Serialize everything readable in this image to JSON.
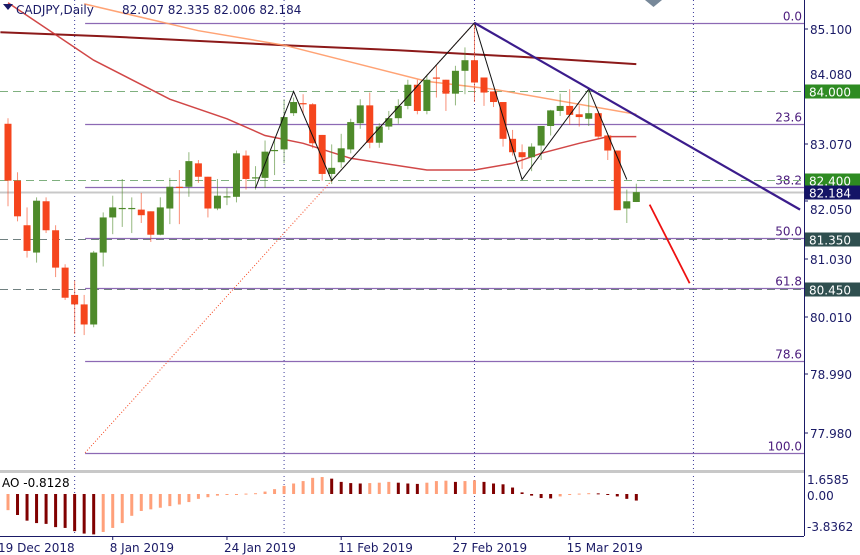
{
  "header": {
    "symbol_label": "CADJPY,Daily",
    "ohlc_label": "82.007 82.335 82.006 82.184"
  },
  "colors": {
    "bull": "#4e8a2a",
    "bear": "#f5451d",
    "ma_slow": "#800000",
    "ma_mid": "#ff9966",
    "ma_fast": "#cc3333",
    "fib": "#7a4fa8",
    "trendline": "#3b1c8c",
    "axis_text": "#1a1a66",
    "badge_green": "#2e8b22",
    "badge_dark": "#2f4f4f",
    "badge_navy": "#141466",
    "ao_up": "#ffa07a",
    "ao_down": "#800000"
  },
  "chart_data": {
    "type": "candlestick",
    "symbol": "CADJPY",
    "timeframe": "Daily",
    "ylim": [
      77.2,
      85.63
    ],
    "y_ticks": [
      "85.100",
      "84.080",
      "83.070",
      "82.050",
      "81.030",
      "80.010",
      "78.990",
      "77.980"
    ],
    "x_ticks": [
      {
        "label": "19 Dec 2018",
        "index": -1
      },
      {
        "label": "8 Jan 2019",
        "index": 11
      },
      {
        "label": "24 Jan 2019",
        "index": 23
      },
      {
        "label": "11 Feb 2019",
        "index": 35
      },
      {
        "label": "27 Feb 2019",
        "index": 47
      },
      {
        "label": "15 Mar 2019",
        "index": 59
      }
    ],
    "period_separators": [
      7,
      29,
      49,
      72
    ],
    "candles_ohlc": [
      [
        83.41,
        83.51,
        81.93,
        82.39
      ],
      [
        82.39,
        82.54,
        81.66,
        81.75
      ],
      [
        81.59,
        81.91,
        81.01,
        81.13
      ],
      [
        81.1,
        82.09,
        80.92,
        82.03
      ],
      [
        82.02,
        82.09,
        81.45,
        81.5
      ],
      [
        81.5,
        81.59,
        80.66,
        80.83
      ],
      [
        80.83,
        80.89,
        80.25,
        80.29
      ],
      [
        80.34,
        80.6,
        79.64,
        80.17
      ],
      [
        80.17,
        80.34,
        79.62,
        79.81
      ],
      [
        79.81,
        81.13,
        79.76,
        81.1
      ],
      [
        81.1,
        81.82,
        80.85,
        81.73
      ],
      [
        81.73,
        82.12,
        81.43,
        81.91
      ],
      [
        81.89,
        82.42,
        81.56,
        81.9
      ],
      [
        81.89,
        82.09,
        81.45,
        81.9
      ],
      [
        81.87,
        82.17,
        81.63,
        81.77
      ],
      [
        81.84,
        81.84,
        81.29,
        81.42
      ],
      [
        81.42,
        82.09,
        81.41,
        81.91
      ],
      [
        81.89,
        82.44,
        81.61,
        82.28
      ],
      [
        82.28,
        82.58,
        81.61,
        82.26
      ],
      [
        82.28,
        82.9,
        82.1,
        82.74
      ],
      [
        82.7,
        82.76,
        82.35,
        82.46
      ],
      [
        82.46,
        82.46,
        81.73,
        81.89
      ],
      [
        81.89,
        82.42,
        81.86,
        82.12
      ],
      [
        82.1,
        82.26,
        81.95,
        82.11
      ],
      [
        82.1,
        82.93,
        82.0,
        82.88
      ],
      [
        82.84,
        82.93,
        82.23,
        82.42
      ],
      [
        82.44,
        82.65,
        82.23,
        82.45
      ],
      [
        82.44,
        83.11,
        82.26,
        82.91
      ],
      [
        82.93,
        83.14,
        82.49,
        82.94
      ],
      [
        82.95,
        83.85,
        82.7,
        83.53
      ],
      [
        83.6,
        83.88,
        83.55,
        83.8
      ],
      [
        83.78,
        83.94,
        83.58,
        83.77
      ],
      [
        83.76,
        83.78,
        82.97,
        83.06
      ],
      [
        83.21,
        83.21,
        82.39,
        82.51
      ],
      [
        82.51,
        83.04,
        82.33,
        82.62
      ],
      [
        82.72,
        83.23,
        82.62,
        82.97
      ],
      [
        82.95,
        83.5,
        82.88,
        83.44
      ],
      [
        83.42,
        83.85,
        83.32,
        83.74
      ],
      [
        83.74,
        83.97,
        82.97,
        83.07
      ],
      [
        83.07,
        83.42,
        82.98,
        83.36
      ],
      [
        83.36,
        83.64,
        83.3,
        83.51
      ],
      [
        83.51,
        83.85,
        83.41,
        83.73
      ],
      [
        83.73,
        84.2,
        83.67,
        84.11
      ],
      [
        84.11,
        84.2,
        83.58,
        83.64
      ],
      [
        83.64,
        84.29,
        83.58,
        84.2
      ],
      [
        84.24,
        84.46,
        83.88,
        84.23
      ],
      [
        84.2,
        84.2,
        83.64,
        83.95
      ],
      [
        83.95,
        84.45,
        83.74,
        84.36
      ],
      [
        84.36,
        84.78,
        83.94,
        84.55
      ],
      [
        84.55,
        85.22,
        83.8,
        84.15
      ],
      [
        84.24,
        84.24,
        83.73,
        83.97
      ],
      [
        83.99,
        83.99,
        83.71,
        83.8
      ],
      [
        83.8,
        83.8,
        83.0,
        83.14
      ],
      [
        83.14,
        83.3,
        82.84,
        82.9
      ],
      [
        82.9,
        83.04,
        82.6,
        82.81
      ],
      [
        82.81,
        83.06,
        82.56,
        83.0
      ],
      [
        83.02,
        83.37,
        82.76,
        83.37
      ],
      [
        83.37,
        83.66,
        83.2,
        83.65
      ],
      [
        83.64,
        83.95,
        83.55,
        83.73
      ],
      [
        83.73,
        84.03,
        83.39,
        83.57
      ],
      [
        83.58,
        83.74,
        83.36,
        83.53
      ],
      [
        83.5,
        84.03,
        83.37,
        83.6
      ],
      [
        83.6,
        83.64,
        83.14,
        83.18
      ],
      [
        83.2,
        83.2,
        82.76,
        82.93
      ],
      [
        82.93,
        82.93,
        81.86,
        81.86
      ],
      [
        81.89,
        82.23,
        81.63,
        82.02
      ],
      [
        82.007,
        82.335,
        82.006,
        82.184
      ]
    ],
    "moving_averages": [
      {
        "role": "ma_slow",
        "points": [
          [
            -0.8,
            85.05
          ],
          [
            10,
            84.98
          ],
          [
            29,
            84.82
          ],
          [
            41,
            84.73
          ],
          [
            54,
            84.61
          ],
          [
            66,
            84.48
          ]
        ]
      },
      {
        "role": "ma_mid",
        "points": [
          [
            8,
            85.56
          ],
          [
            20,
            85.08
          ],
          [
            29,
            84.82
          ],
          [
            44,
            84.17
          ],
          [
            51,
            84.03
          ],
          [
            66,
            83.58
          ]
        ]
      },
      {
        "role": "ma_fast",
        "points": [
          [
            0,
            85.58
          ],
          [
            9,
            84.55
          ],
          [
            17,
            83.85
          ],
          [
            23,
            83.5
          ],
          [
            27,
            83.2
          ],
          [
            31,
            83.06
          ],
          [
            36,
            82.79
          ],
          [
            44,
            82.58
          ],
          [
            49,
            82.58
          ],
          [
            53,
            82.7
          ],
          [
            56,
            82.88
          ],
          [
            60,
            83.06
          ],
          [
            63,
            83.18
          ],
          [
            66,
            83.18
          ]
        ]
      }
    ],
    "fibonacci": {
      "from_index": 8.1,
      "levels": [
        {
          "label": "0.0",
          "price": 85.22
        },
        {
          "label": "23.6",
          "price": 83.4
        },
        {
          "label": "38.2",
          "price": 82.27
        },
        {
          "label": "50.0",
          "price": 81.37
        },
        {
          "label": "61.8",
          "price": 80.46
        },
        {
          "label": "78.6",
          "price": 79.16
        },
        {
          "label": "100.0",
          "price": 77.51
        }
      ]
    },
    "zigzag": [
      [
        26,
        82.26
      ],
      [
        30,
        83.99
      ],
      [
        34,
        82.39
      ],
      [
        49,
        85.22
      ],
      [
        54,
        82.41
      ],
      [
        61,
        84.03
      ],
      [
        65,
        82.41
      ]
    ],
    "trendline": [
      [
        49,
        85.22
      ],
      [
        83.2,
        81.87
      ]
    ],
    "projection_line": [
      [
        67.4,
        81.96
      ],
      [
        71.6,
        80.55
      ]
    ],
    "fib_anchor_line": [
      [
        8.1,
        77.51
      ],
      [
        49,
        85.22
      ]
    ],
    "price_levels": [
      {
        "label": "84.000",
        "price": 84.0,
        "style": "green"
      },
      {
        "label": "82.400",
        "price": 82.4,
        "style": "green"
      },
      {
        "label": "82.184",
        "price": 82.184,
        "style": "current"
      },
      {
        "label": "81.350",
        "price": 81.35,
        "style": "dark"
      },
      {
        "label": "80.450",
        "price": 80.45,
        "style": "dark"
      }
    ],
    "indicator": {
      "name": "AO",
      "value_label": "AO -0.8128",
      "y_ticks": [
        "1.6585",
        "0.00",
        "-3.8362"
      ],
      "ylim": [
        -5.2,
        2.6
      ],
      "values": [
        -2.0,
        -2.6,
        -3.3,
        -3.6,
        -3.7,
        -4.1,
        -4.2,
        -4.6,
        -4.9,
        -5.0,
        -4.7,
        -4.2,
        -3.6,
        -2.7,
        -2.1,
        -1.9,
        -1.7,
        -1.5,
        -1.3,
        -1.0,
        -0.6,
        -0.4,
        -0.2,
        -0.1,
        -0.05,
        0.05,
        0.1,
        0.3,
        0.6,
        1.0,
        1.3,
        1.6,
        2.0,
        2.1,
        1.9,
        1.5,
        1.35,
        1.3,
        1.35,
        1.4,
        1.5,
        1.4,
        1.3,
        1.25,
        1.4,
        1.6,
        1.65,
        1.5,
        1.6,
        1.7,
        1.5,
        1.3,
        1.2,
        0.8,
        0.2,
        -0.2,
        -0.5,
        -0.55,
        -0.3,
        -0.1,
        0.05,
        0.1,
        0.08,
        -0.05,
        -0.3,
        -0.6,
        -0.8128
      ]
    }
  }
}
